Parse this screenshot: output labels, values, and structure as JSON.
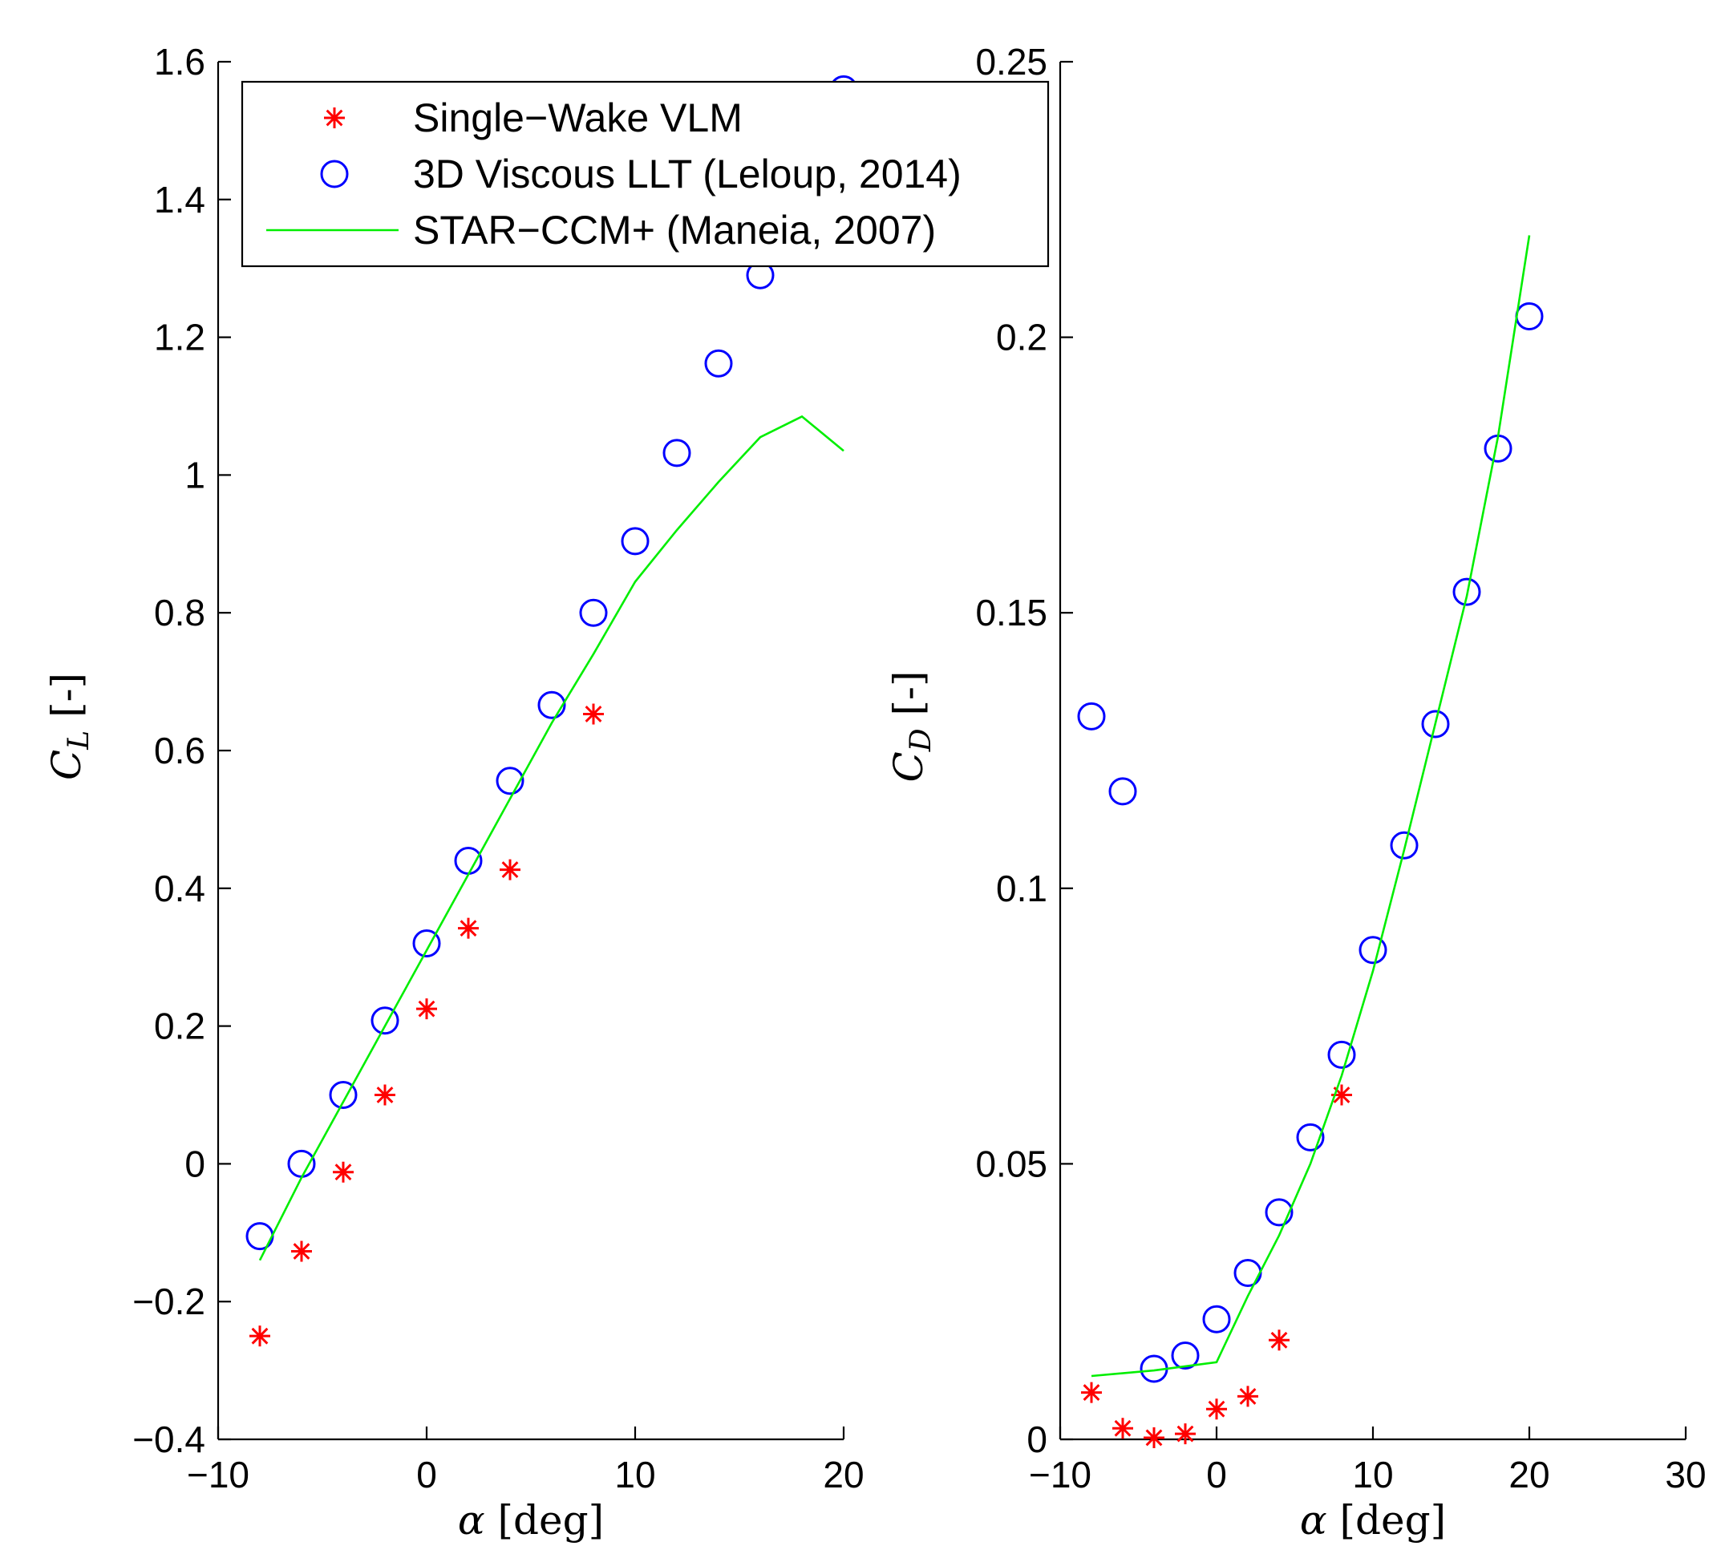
{
  "colors": {
    "single_wake_vlm": "#ff0000",
    "viscous_llt": "#0000ff",
    "star_ccm": "#00ee00"
  },
  "legend": {
    "placement": "top-left of left panel",
    "entries": [
      {
        "label": "Single−Wake VLM",
        "marker": "asterisk",
        "color": "#ff0000"
      },
      {
        "label": "3D Viscous LLT (Leloup, 2014)",
        "marker": "circle",
        "color": "#0000ff"
      },
      {
        "label": "STAR−CCM+ (Maneia, 2007)",
        "marker": "line",
        "color": "#00ee00"
      }
    ]
  },
  "chart_data": [
    {
      "type": "scatter",
      "title": "",
      "xlabel": "α [deg]",
      "ylabel": "C_L [-]",
      "ylabel_symbol": "C",
      "ylabel_subscript": "L",
      "ylabel_unit": "[-]",
      "xlim": [
        -10,
        20
      ],
      "ylim": [
        -0.4,
        1.6
      ],
      "xticks": [
        -10,
        0,
        10,
        20
      ],
      "xtick_labels": [
        "−10",
        "0",
        "10",
        "20"
      ],
      "yticks": [
        -0.4,
        -0.2,
        0,
        0.2,
        0.4,
        0.6,
        0.8,
        1,
        1.2,
        1.4,
        1.6
      ],
      "ytick_labels": [
        "−0.4",
        "−0.2",
        "0",
        "0.2",
        "0.4",
        "0.6",
        "0.8",
        "1",
        "1.2",
        "1.4",
        "1.6"
      ],
      "grid": false,
      "series": [
        {
          "name": "Single−Wake VLM",
          "kind": "scatter",
          "marker": "asterisk",
          "x": [
            -8,
            -6,
            -4,
            -2,
            0,
            2,
            4,
            8
          ],
          "y": [
            -0.25,
            -0.127,
            -0.012,
            0.1,
            0.225,
            0.342,
            0.427,
            0.653
          ]
        },
        {
          "name": "3D Viscous LLT (Leloup, 2014)",
          "kind": "scatter",
          "marker": "circle",
          "x": [
            -8,
            -6,
            -4,
            -2,
            0,
            2,
            4,
            6,
            8,
            10,
            12,
            14,
            16,
            20
          ],
          "y": [
            -0.105,
            0.0,
            0.1,
            0.208,
            0.32,
            0.44,
            0.556,
            0.666,
            0.8,
            0.904,
            1.032,
            1.162,
            1.29,
            1.56
          ]
        },
        {
          "name": "STAR−CCM+ (Maneia, 2007)",
          "kind": "line",
          "x": [
            -8,
            -6,
            -4,
            -2,
            0,
            2,
            4,
            6,
            8,
            10,
            12,
            14,
            16,
            18,
            20
          ],
          "y": [
            -0.14,
            -0.02,
            0.09,
            0.2,
            0.31,
            0.42,
            0.53,
            0.64,
            0.74,
            0.845,
            0.92,
            0.99,
            1.055,
            1.085,
            1.035
          ]
        }
      ]
    },
    {
      "type": "scatter",
      "title": "",
      "xlabel": "α [deg]",
      "ylabel": "C_D [-]",
      "ylabel_symbol": "C",
      "ylabel_subscript": "D",
      "ylabel_unit": "[-]",
      "xlim": [
        -10,
        30
      ],
      "ylim": [
        0,
        0.25
      ],
      "xticks": [
        -10,
        0,
        10,
        20,
        30
      ],
      "xtick_labels": [
        "−10",
        "0",
        "10",
        "20",
        "30"
      ],
      "yticks": [
        0,
        0.05,
        0.1,
        0.15,
        0.2,
        0.25
      ],
      "ytick_labels": [
        "0",
        "0.05",
        "0.1",
        "0.15",
        "0.2",
        "0.25"
      ],
      "grid": false,
      "series": [
        {
          "name": "Single−Wake VLM",
          "kind": "scatter",
          "marker": "asterisk",
          "x": [
            -8,
            -6,
            -4,
            -2,
            0,
            2,
            4,
            8
          ],
          "y": [
            0.0085,
            0.002,
            0.0003,
            0.001,
            0.0055,
            0.0078,
            0.018,
            0.0625
          ]
        },
        {
          "name": "3D Viscous LLT (Leloup, 2014)",
          "kind": "scatter",
          "marker": "circle",
          "x": [
            -8,
            -6,
            -4,
            -2,
            0,
            2,
            4,
            6,
            8,
            10,
            12,
            14,
            16,
            18,
            20
          ],
          "y": [
            0.1312,
            0.1176,
            0.0128,
            0.0152,
            0.0218,
            0.0302,
            0.0412,
            0.0548,
            0.0698,
            0.0888,
            0.1078,
            0.1298,
            0.1538,
            0.1798,
            0.2038
          ]
        },
        {
          "name": "STAR−CCM+ (Maneia, 2007)",
          "kind": "line",
          "x": [
            -8,
            -4,
            0,
            2,
            4,
            6,
            8,
            10,
            12,
            14,
            16,
            18,
            20
          ],
          "y": [
            0.0115,
            0.0125,
            0.014,
            0.026,
            0.037,
            0.05,
            0.066,
            0.085,
            0.107,
            0.13,
            0.153,
            0.182,
            0.2185
          ]
        }
      ]
    }
  ]
}
